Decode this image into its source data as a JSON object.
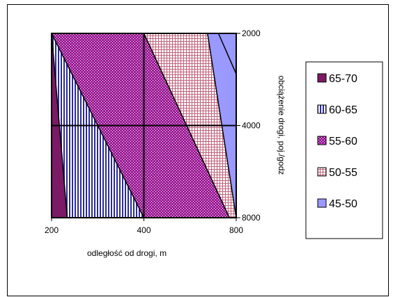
{
  "chart_data": {
    "type": "area",
    "title": "",
    "xlabel": "odległość od drogi,  m",
    "ylabel": "obciążenie drogi,  poj./godz",
    "x_ticks": [
      "200",
      "400",
      "800"
    ],
    "y_ticks": [
      "2000",
      "4000",
      "8000"
    ],
    "grid": true,
    "legend_position": "right",
    "bands": [
      {
        "name": "65-70",
        "color": "#7b1a66",
        "pattern": "solid",
        "boundary": {
          "top_x": 200,
          "bottom_x": 225
        }
      },
      {
        "name": "60-65",
        "color": "#2a2a9e",
        "pattern": "vertical-stripes",
        "boundary": {
          "top_x": 200,
          "bottom_x": 400
        }
      },
      {
        "name": "55-60",
        "color": "#9c1e96",
        "pattern": "dotted",
        "boundary": {
          "top_x": 400,
          "bottom_x": 760
        }
      },
      {
        "name": "50-55",
        "color": "#e8b8c8",
        "pattern": "grid",
        "boundary": {
          "top_x": 645,
          "bottom_x": 800
        }
      },
      {
        "name": "45-50",
        "color": "#9999ff",
        "pattern": "solid",
        "boundary": null
      }
    ]
  }
}
